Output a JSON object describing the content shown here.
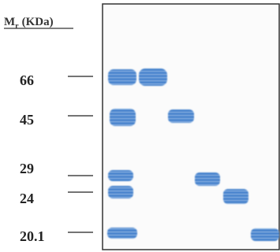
{
  "header": {
    "symbol": "M",
    "subscript": "r",
    "unit": "(KDa)"
  },
  "markers": [
    "66",
    "45",
    "29",
    "24",
    "20.1"
  ]
}
